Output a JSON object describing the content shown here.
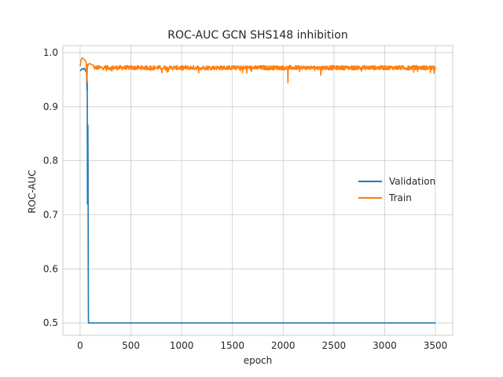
{
  "chart_data": {
    "type": "line",
    "title": "ROC-AUC GCN SHS148 inhibition",
    "xlabel": "epoch",
    "ylabel": "ROC-AUC",
    "xlim": [
      -170,
      3670
    ],
    "ylim": [
      0.477,
      1.013
    ],
    "xticks": [
      0,
      500,
      1000,
      1500,
      2000,
      2500,
      3000,
      3500
    ],
    "yticks": [
      0.5,
      0.6,
      0.7,
      0.8,
      0.9,
      1.0
    ],
    "ytick_labels": [
      "0.5",
      "0.6",
      "0.7",
      "0.8",
      "0.9",
      "1.0"
    ],
    "grid": true,
    "legend_position": "center-right",
    "series": [
      {
        "name": "Validation",
        "color": "#1f77b4",
        "x": [
          0,
          10,
          20,
          30,
          40,
          50,
          55,
          60,
          64,
          66,
          68,
          70,
          72,
          74,
          76,
          78,
          80,
          82,
          84,
          88,
          100,
          500,
          1000,
          1500,
          2000,
          2500,
          3000,
          3500
        ],
        "y": [
          0.966,
          0.968,
          0.97,
          0.969,
          0.971,
          0.968,
          0.965,
          0.967,
          0.96,
          0.94,
          0.93,
          0.95,
          0.72,
          0.79,
          0.866,
          0.8,
          0.6,
          0.5,
          0.5,
          0.5,
          0.5,
          0.5,
          0.5,
          0.5,
          0.5,
          0.5,
          0.5,
          0.5
        ]
      },
      {
        "name": "Train",
        "color": "#ff7f0e",
        "base": 0.972,
        "noise": 0.004,
        "x_range": [
          0,
          3500
        ],
        "points": [
          [
            0,
            0.975
          ],
          [
            8,
            0.985
          ],
          [
            15,
            0.989
          ],
          [
            25,
            0.99
          ],
          [
            35,
            0.988
          ],
          [
            45,
            0.986
          ],
          [
            55,
            0.984
          ],
          [
            60,
            0.98
          ],
          [
            62,
            0.958
          ],
          [
            65,
            0.975
          ],
          [
            68,
            0.945
          ],
          [
            72,
            0.978
          ],
          [
            78,
            0.976
          ],
          [
            90,
            0.98
          ],
          [
            110,
            0.978
          ],
          [
            130,
            0.977
          ]
        ],
        "dips": [
          [
            2045,
            0.944
          ],
          [
            2370,
            0.958
          ],
          [
            1600,
            0.963
          ],
          [
            3450,
            0.963
          ]
        ]
      }
    ]
  }
}
